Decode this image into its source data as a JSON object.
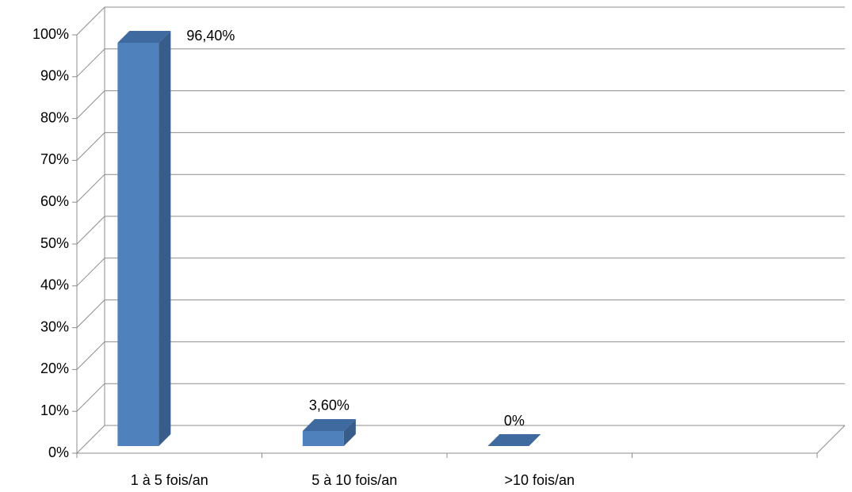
{
  "chart_data": {
    "type": "bar3d",
    "categories": [
      "1 à 5 fois/an",
      "5 à 10 fois/an",
      ">10 fois/an",
      null
    ],
    "values": [
      96.4,
      3.6,
      0,
      null
    ],
    "value_labels": [
      "96,40%",
      "3,60%",
      "0%",
      null
    ],
    "color": "#4f81bd",
    "ylim": [
      0,
      100
    ],
    "yticks": [
      {
        "value": 0,
        "label": "0%"
      },
      {
        "value": 10,
        "label": "10%"
      },
      {
        "value": 20,
        "label": "20%"
      },
      {
        "value": 30,
        "label": "30%"
      },
      {
        "value": 40,
        "label": "40%"
      },
      {
        "value": 50,
        "label": "50%"
      },
      {
        "value": 60,
        "label": "60%"
      },
      {
        "value": 70,
        "label": "70%"
      },
      {
        "value": 80,
        "label": "80%"
      },
      {
        "value": 90,
        "label": "90%"
      },
      {
        "value": 100,
        "label": "100%"
      }
    ],
    "grid": true
  }
}
